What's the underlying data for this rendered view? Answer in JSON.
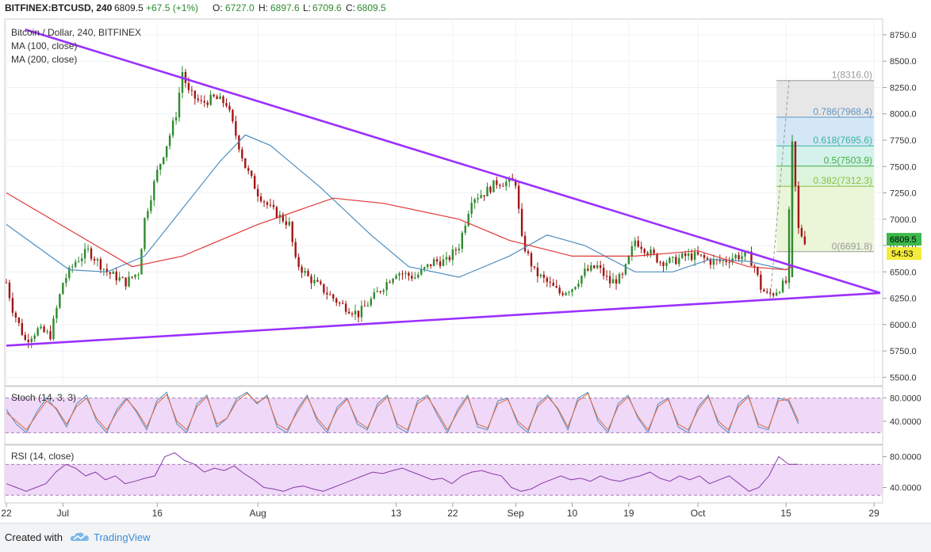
{
  "header": {
    "symbol": "BITFINEX:BTCUSD, 240",
    "last": "6809.5",
    "change": "+67.5 (+1%)",
    "o_label": "O:",
    "o_value": "6727.0",
    "h_label": "H:",
    "h_value": "6897.6",
    "l_label": "L:",
    "l_value": "6709.6",
    "c_label": "C:",
    "c_value": "6809.5"
  },
  "legend": {
    "title": "Bitcoin / Dollar, 240, BITFINEX",
    "ma100": "MA (100, close)",
    "ma200": "MA (200, close)"
  },
  "footer": {
    "created": "Created with",
    "brand": "TradingView"
  },
  "colors": {
    "trendline": "#9b30ff",
    "candle_up": "#2e8b2e",
    "candle_down": "#a31515",
    "ma100": "#4f8fc0",
    "ma200": "#e03a3a",
    "osc_band": "#e8c7f5",
    "stoch_k": "#4f8fc0",
    "stoch_d": "#e06a3a",
    "rsi": "#8a3aa8",
    "price_badge": "#3cb84a",
    "timer_badge": "#f3ec3a"
  },
  "chart_data": [
    {
      "type": "candlestick",
      "title": "Bitcoin / Dollar, 240, BITFINEX",
      "ylim": [
        5500,
        8750
      ],
      "y_ticks": [
        "8750.0",
        "8500.0",
        "8250.0",
        "8000.0",
        "7750.0",
        "7500.0",
        "7250.0",
        "7000.0",
        "6750.0",
        "6500.0",
        "6250.0",
        "6000.0",
        "5750.0",
        "5500.0"
      ],
      "x_ticks": [
        "22",
        "Jul",
        "16",
        "Aug",
        "13",
        "22",
        "Sep",
        "10",
        "19",
        "Oct",
        "15",
        "29"
      ],
      "x_tick_days": [
        0,
        9,
        24,
        40,
        62,
        71,
        81,
        90,
        99,
        110,
        124,
        138
      ],
      "x_range_days": [
        0,
        139
      ],
      "price_waypoints": [
        [
          0,
          6400
        ],
        [
          1,
          6150
        ],
        [
          3,
          5850
        ],
        [
          5,
          5950
        ],
        [
          7,
          5900
        ],
        [
          9,
          6400
        ],
        [
          11,
          6600
        ],
        [
          13,
          6700
        ],
        [
          16,
          6500
        ],
        [
          19,
          6400
        ],
        [
          21,
          6500
        ],
        [
          22,
          7000
        ],
        [
          24,
          7450
        ],
        [
          26,
          7800
        ],
        [
          27,
          8000
        ],
        [
          28,
          8400
        ],
        [
          29,
          8200
        ],
        [
          31,
          8100
        ],
        [
          33,
          8150
        ],
        [
          35,
          8100
        ],
        [
          38,
          7500
        ],
        [
          40,
          7250
        ],
        [
          42,
          7100
        ],
        [
          45,
          6950
        ],
        [
          46,
          6600
        ],
        [
          48,
          6450
        ],
        [
          51,
          6300
        ],
        [
          53,
          6200
        ],
        [
          56,
          6100
        ],
        [
          59,
          6300
        ],
        [
          62,
          6500
        ],
        [
          65,
          6450
        ],
        [
          68,
          6600
        ],
        [
          70,
          6600
        ],
        [
          72,
          6750
        ],
        [
          74,
          7200
        ],
        [
          76,
          7250
        ],
        [
          78,
          7350
        ],
        [
          81,
          7350
        ],
        [
          82,
          6800
        ],
        [
          84,
          6500
        ],
        [
          86,
          6400
        ],
        [
          88,
          6300
        ],
        [
          90,
          6350
        ],
        [
          92,
          6500
        ],
        [
          94,
          6550
        ],
        [
          96,
          6400
        ],
        [
          98,
          6450
        ],
        [
          100,
          6800
        ],
        [
          102,
          6700
        ],
        [
          104,
          6600
        ],
        [
          106,
          6600
        ],
        [
          108,
          6650
        ],
        [
          110,
          6650
        ],
        [
          112,
          6600
        ],
        [
          114,
          6600
        ],
        [
          116,
          6650
        ],
        [
          118,
          6650
        ],
        [
          119,
          6550
        ],
        [
          120,
          6350
        ],
        [
          121,
          6280
        ],
        [
          122,
          6300
        ],
        [
          123,
          6350
        ],
        [
          124,
          6400
        ],
        [
          125,
          7700
        ],
        [
          126,
          6900
        ],
        [
          127,
          6800
        ]
      ],
      "ma100_waypoints": [
        [
          0,
          6950
        ],
        [
          10,
          6520
        ],
        [
          16,
          6500
        ],
        [
          22,
          6650
        ],
        [
          28,
          7100
        ],
        [
          34,
          7550
        ],
        [
          38,
          7800
        ],
        [
          42,
          7700
        ],
        [
          50,
          7300
        ],
        [
          58,
          6850
        ],
        [
          64,
          6550
        ],
        [
          72,
          6450
        ],
        [
          80,
          6650
        ],
        [
          86,
          6850
        ],
        [
          92,
          6750
        ],
        [
          100,
          6500
        ],
        [
          106,
          6500
        ],
        [
          112,
          6620
        ],
        [
          118,
          6600
        ],
        [
          124,
          6520
        ],
        [
          125,
          6550
        ]
      ],
      "ma200_waypoints": [
        [
          0,
          7250
        ],
        [
          10,
          6900
        ],
        [
          20,
          6550
        ],
        [
          28,
          6650
        ],
        [
          40,
          6950
        ],
        [
          52,
          7200
        ],
        [
          60,
          7150
        ],
        [
          72,
          7000
        ],
        [
          80,
          6800
        ],
        [
          90,
          6650
        ],
        [
          100,
          6650
        ],
        [
          110,
          6700
        ],
        [
          118,
          6550
        ],
        [
          124,
          6520
        ],
        [
          125,
          6550
        ]
      ],
      "trendlines": [
        {
          "name": "resistance",
          "points": [
            [
              3,
              8800
            ],
            [
              139,
              6300
            ]
          ]
        },
        {
          "name": "support",
          "points": [
            [
              0,
              5800
            ],
            [
              139,
              6300
            ]
          ]
        }
      ],
      "fibonacci": [
        {
          "ratio": "1",
          "value": 8316.0,
          "label": "1(8316.0)",
          "fill": "#e3e3e3"
        },
        {
          "ratio": "0.786",
          "value": 7968.4,
          "label": "0.786(7968.4)",
          "fill": "#cde3f5"
        },
        {
          "ratio": "0.618",
          "value": 7695.6,
          "label": "0.618(7695.6)",
          "fill": "#cdefe8"
        },
        {
          "ratio": "0.5",
          "value": 7503.9,
          "label": "0.5(7503.9)",
          "fill": "#d6f2d6"
        },
        {
          "ratio": "0.382",
          "value": 7312.3,
          "label": "0.382(7312.3)",
          "fill": "#e7f3d1"
        },
        {
          "ratio": "0",
          "value": 6691.8,
          "label": "0(6691.8)",
          "fill": "#e7f3d1"
        }
      ],
      "fib_day_range": [
        122.5,
        138
      ],
      "last_price_badge": "6809.5",
      "timer_badge": "54:53"
    },
    {
      "type": "line",
      "title": "Stoch (14, 3, 3)",
      "ylim": [
        0,
        100
      ],
      "y_ticks": [
        "80.0000",
        "40.0000"
      ],
      "band": [
        20,
        80
      ],
      "series": [
        {
          "name": "%K",
          "values_note": "oscillating",
          "values": [
            60,
            35,
            20,
            55,
            80,
            60,
            30,
            70,
            85,
            40,
            20,
            60,
            80,
            55,
            25,
            75,
            90,
            35,
            20,
            70,
            85,
            30,
            45,
            80,
            90,
            70,
            85,
            30,
            20,
            60,
            85,
            40,
            20,
            65,
            80,
            35,
            25,
            70,
            85,
            30,
            20,
            75,
            85,
            50,
            20,
            60,
            85,
            30,
            25,
            75,
            80,
            35,
            20,
            70,
            85,
            60,
            25,
            80,
            90,
            40,
            20,
            70,
            85,
            45,
            20,
            70,
            80,
            30,
            20,
            65,
            85,
            35,
            20,
            70,
            85,
            30,
            25,
            80,
            75,
            35
          ]
        },
        {
          "name": "%D",
          "values": [
            55,
            40,
            25,
            50,
            75,
            62,
            35,
            65,
            80,
            45,
            25,
            55,
            78,
            58,
            30,
            70,
            86,
            40,
            25,
            65,
            82,
            35,
            45,
            75,
            88,
            72,
            82,
            35,
            25,
            55,
            82,
            45,
            25,
            60,
            78,
            40,
            28,
            65,
            82,
            35,
            25,
            70,
            82,
            55,
            25,
            55,
            82,
            35,
            28,
            70,
            78,
            40,
            25,
            65,
            82,
            62,
            30,
            75,
            88,
            45,
            25,
            65,
            82,
            48,
            25,
            65,
            78,
            35,
            25,
            60,
            82,
            40,
            25,
            65,
            82,
            35,
            28,
            75,
            78,
            40
          ]
        }
      ]
    },
    {
      "type": "line",
      "title": "RSI (14, close)",
      "ylim": [
        20,
        95
      ],
      "y_ticks": [
        "80.0000",
        "40.0000"
      ],
      "band": [
        30,
        70
      ],
      "series": [
        {
          "name": "RSI",
          "values": [
            45,
            40,
            35,
            40,
            45,
            60,
            70,
            65,
            55,
            60,
            50,
            55,
            45,
            48,
            52,
            55,
            80,
            85,
            75,
            70,
            60,
            65,
            62,
            68,
            58,
            50,
            40,
            38,
            35,
            40,
            42,
            38,
            35,
            40,
            45,
            50,
            55,
            60,
            58,
            62,
            65,
            60,
            55,
            50,
            52,
            45,
            55,
            60,
            62,
            58,
            55,
            40,
            35,
            38,
            45,
            50,
            55,
            50,
            52,
            48,
            55,
            50,
            48,
            52,
            55,
            60,
            52,
            48,
            55,
            50,
            55,
            45,
            50,
            55,
            45,
            35,
            40,
            55,
            80,
            70,
            70
          ]
        }
      ]
    }
  ]
}
